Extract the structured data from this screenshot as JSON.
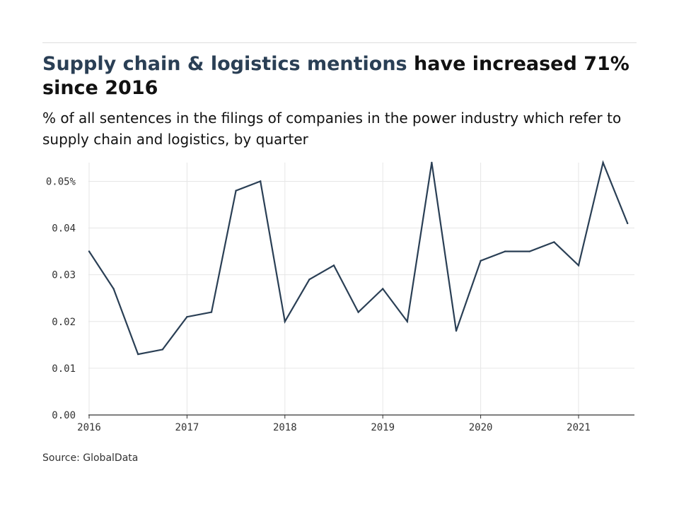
{
  "title": {
    "highlight": "Supply chain & logistics mentions",
    "rest": "have increased 71% since 2016"
  },
  "subtitle": "% of all sentences in the filings of companies in the power industry which refer to supply chain and logistics, by quarter",
  "source": "Source: GlobalData",
  "colors": {
    "line": "#2a3f55",
    "grid": "#e6e6e6",
    "axis": "#333333"
  },
  "chart_data": {
    "type": "line",
    "title": "Supply chain & logistics mentions have increased 71% since 2016",
    "xlabel": "",
    "ylabel": "",
    "x": [
      "2016 Q1",
      "2016 Q2",
      "2016 Q3",
      "2016 Q4",
      "2017 Q1",
      "2017 Q2",
      "2017 Q3",
      "2017 Q4",
      "2018 Q1",
      "2018 Q2",
      "2018 Q3",
      "2018 Q4",
      "2019 Q1",
      "2019 Q2",
      "2019 Q3",
      "2019 Q4",
      "2020 Q1",
      "2020 Q2",
      "2020 Q3",
      "2020 Q4",
      "2021 Q1",
      "2021 Q2",
      "2021 Q3"
    ],
    "series": [
      {
        "values": [
          0.035,
          0.027,
          0.013,
          0.014,
          0.021,
          0.022,
          0.048,
          0.05,
          0.02,
          0.029,
          0.032,
          0.022,
          0.027,
          0.02,
          0.054,
          0.018,
          0.033,
          0.035,
          0.035,
          0.037,
          0.032,
          0.054,
          0.041
        ]
      }
    ],
    "x_ticks": [
      "2016",
      "2017",
      "2018",
      "2019",
      "2020",
      "2021"
    ],
    "y_ticks": [
      0,
      0.01,
      0.02,
      0.03,
      0.04,
      0.05
    ],
    "y_tick_labels": [
      "0.00",
      "0.01",
      "0.02",
      "0.03",
      "0.04",
      "0.05%"
    ],
    "ylim": [
      0,
      0.054
    ],
    "grid": true,
    "legend": "none"
  }
}
